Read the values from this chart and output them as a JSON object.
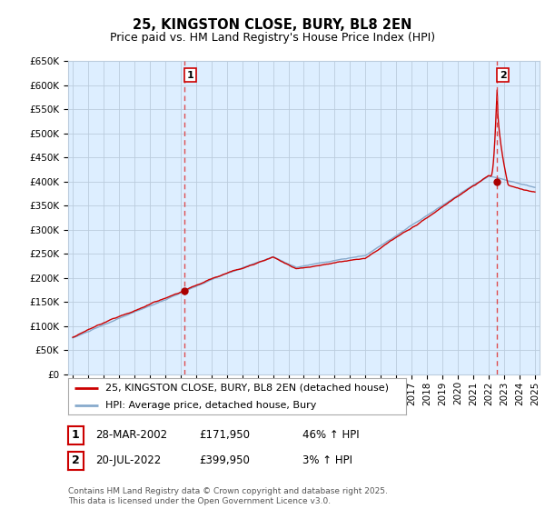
{
  "title": "25, KINGSTON CLOSE, BURY, BL8 2EN",
  "subtitle": "Price paid vs. HM Land Registry's House Price Index (HPI)",
  "ylim": [
    0,
    650000
  ],
  "xlim_start": 1994.7,
  "xlim_end": 2025.3,
  "sale1_year": 2002.24,
  "sale1_price": 171950,
  "sale2_year": 2022.55,
  "sale2_price": 399950,
  "line_color_property": "#cc0000",
  "line_color_hpi": "#88aacc",
  "vline_color": "#dd3333",
  "dot_color": "#aa0000",
  "bg_chart": "#ddeeff",
  "bg_white": "#ffffff",
  "grid_color": "#bbccdd",
  "legend_label_property": "25, KINGSTON CLOSE, BURY, BL8 2EN (detached house)",
  "legend_label_hpi": "HPI: Average price, detached house, Bury",
  "table_rows": [
    {
      "num": "1",
      "date": "28-MAR-2002",
      "price": "£171,950",
      "hpi": "46% ↑ HPI"
    },
    {
      "num": "2",
      "date": "20-JUL-2022",
      "price": "£399,950",
      "hpi": "3% ↑ HPI"
    }
  ],
  "footnote": "Contains HM Land Registry data © Crown copyright and database right 2025.\nThis data is licensed under the Open Government Licence v3.0.",
  "title_fontsize": 10.5,
  "subtitle_fontsize": 9,
  "tick_fontsize": 7.5,
  "legend_fontsize": 8
}
